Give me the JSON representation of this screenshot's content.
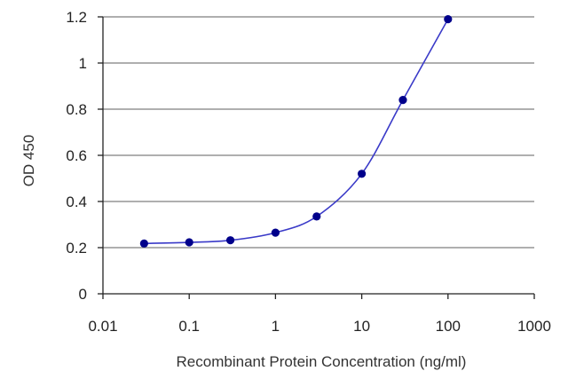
{
  "chart_data": {
    "type": "line",
    "title": "",
    "xlabel": "Recombinant Protein Concentration (ng/ml)",
    "ylabel": "OD 450",
    "x_scale": "log",
    "xlim": [
      0.01,
      1000
    ],
    "ylim": [
      0,
      1.2
    ],
    "x_ticks": [
      0.01,
      0.1,
      1,
      10,
      100,
      1000
    ],
    "x_tick_labels": [
      "0.01",
      "0.1",
      "1",
      "10",
      "100",
      "1000"
    ],
    "y_ticks": [
      0,
      0.2,
      0.4,
      0.6,
      0.8,
      1,
      1.2
    ],
    "y_tick_labels": [
      "0",
      "0.2",
      "0.4",
      "0.6",
      "0.8",
      "1",
      "1.2"
    ],
    "grid": "horizontal",
    "legend": "none",
    "series": [
      {
        "x": [
          0.03,
          0.1,
          0.3,
          1,
          3,
          10,
          30,
          100
        ],
        "y": [
          0.218,
          0.223,
          0.232,
          0.265,
          0.335,
          0.52,
          0.84,
          1.19
        ],
        "color": "#00008b"
      }
    ],
    "colors": {
      "line": "#3a3ac8",
      "marker": "#00008b",
      "grid": "#7f7f7f",
      "axis": "#222222"
    }
  }
}
